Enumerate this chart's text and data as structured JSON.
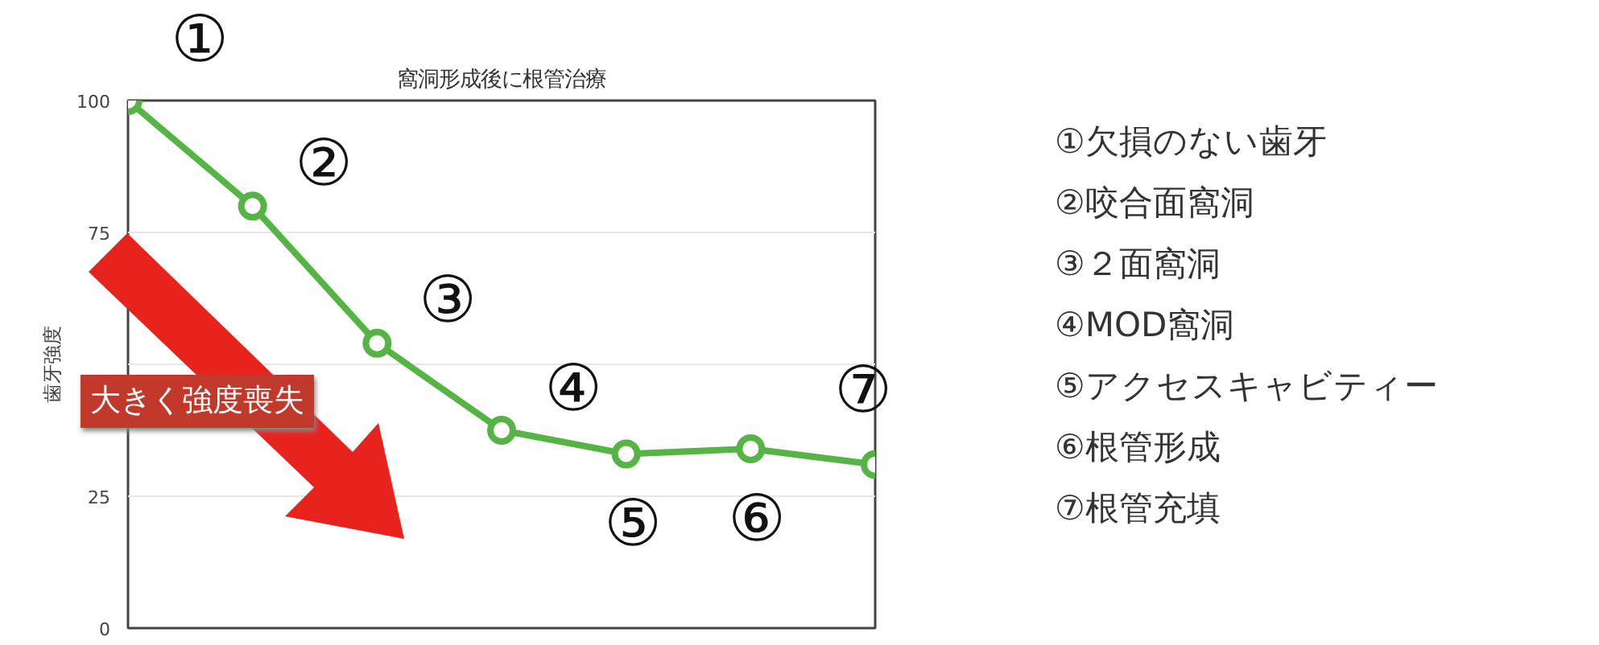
{
  "chart_data": {
    "type": "line",
    "title": "窩洞形成後に根管治療",
    "ylabel": "歯牙強度",
    "categories": [
      null,
      null,
      null,
      null,
      null,
      null,
      null
    ],
    "series": [
      {
        "color": "#55b444",
        "values": [
          100,
          80,
          54,
          37.5,
          33,
          34,
          31
        ]
      }
    ],
    "ylim": [
      0,
      100
    ],
    "yticks": [
      0,
      25,
      {
        "value": 50,
        "label": null
      },
      75,
      100
    ],
    "grid": "y",
    "marker": "circle",
    "line_style": "solid",
    "tick_labels": "y",
    "annotations": [
      "①",
      "②",
      "③",
      "④",
      "⑤",
      "⑥",
      "⑦",
      "大きく強度喪失",
      "①欠損のない歯牙",
      "②咬合面窩洞",
      "③２面窩洞",
      "④MOD窩洞",
      "⑤アクセスキャビティー",
      "⑥根管形成",
      "⑦根管充填"
    ]
  }
}
